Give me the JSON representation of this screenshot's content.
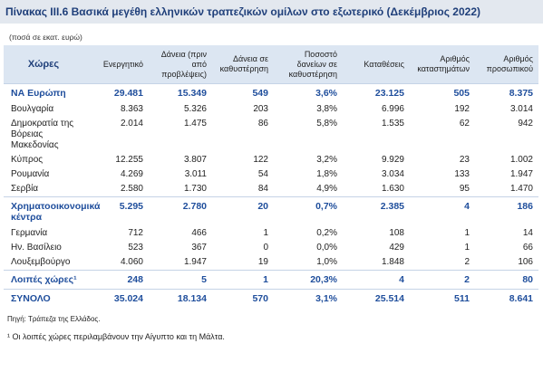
{
  "header": {
    "title": "Πίνακας ΙΙΙ.6 Βασικά μεγέθη ελληνικών τραπεζικών ομίλων στο εξωτερικό (Δεκέμβριος 2022)",
    "unit_note": "(ποσά σε εκατ. ευρώ)"
  },
  "table": {
    "columns": [
      "Χώρες",
      "Ενεργητικό",
      "Δάνεια (πριν από προβλέψεις)",
      "Δάνεια σε καθυστέρηση",
      "Ποσοστό δανείων σε καθυστέρηση",
      "Καταθέσεις",
      "Αριθμός καταστημάτων",
      "Αριθμός προσωπικού"
    ],
    "rows": [
      {
        "emphasis": true,
        "cells": [
          "ΝΑ Ευρώπη",
          "29.481",
          "15.349",
          "549",
          "3,6%",
          "23.125",
          "505",
          "8.375"
        ]
      },
      {
        "emphasis": false,
        "cells": [
          "Βουλγαρία",
          "8.363",
          "5.326",
          "203",
          "3,8%",
          "6.996",
          "192",
          "3.014"
        ]
      },
      {
        "emphasis": false,
        "cells": [
          "Δημοκρατία της Βόρειας Μακεδονίας",
          "2.014",
          "1.475",
          "86",
          "5,8%",
          "1.535",
          "62",
          "942"
        ]
      },
      {
        "emphasis": false,
        "cells": [
          "Κύπρος",
          "12.255",
          "3.807",
          "122",
          "3,2%",
          "9.929",
          "23",
          "1.002"
        ]
      },
      {
        "emphasis": false,
        "cells": [
          "Ρουμανία",
          "4.269",
          "3.011",
          "54",
          "1,8%",
          "3.034",
          "133",
          "1.947"
        ]
      },
      {
        "emphasis": false,
        "cells": [
          "Σερβία",
          "2.580",
          "1.730",
          "84",
          "4,9%",
          "1.630",
          "95",
          "1.470"
        ]
      },
      {
        "emphasis": true,
        "cells": [
          "Χρηματοοικονομικά κέντρα",
          "5.295",
          "2.780",
          "20",
          "0,7%",
          "2.385",
          "4",
          "186"
        ]
      },
      {
        "emphasis": false,
        "cells": [
          "Γερμανία",
          "712",
          "466",
          "1",
          "0,2%",
          "108",
          "1",
          "14"
        ]
      },
      {
        "emphasis": false,
        "cells": [
          "Ην. Βασίλειο",
          "523",
          "367",
          "0",
          "0,0%",
          "429",
          "1",
          "66"
        ]
      },
      {
        "emphasis": false,
        "cells": [
          "Λουξεμβούργο",
          "4.060",
          "1.947",
          "19",
          "1,0%",
          "1.848",
          "2",
          "106"
        ]
      },
      {
        "emphasis": true,
        "cells": [
          "Λοιπές χώρες¹",
          "248",
          "5",
          "1",
          "20,3%",
          "4",
          "2",
          "80"
        ]
      },
      {
        "emphasis": true,
        "cells": [
          "ΣΥΝΟΛΟ",
          "35.024",
          "18.134",
          "570",
          "3,1%",
          "25.514",
          "511",
          "8.641"
        ]
      }
    ]
  },
  "footer": {
    "source": "Πηγή: Τράπεζα της Ελλάδος.",
    "note": "¹ Οι λοιπές χώρες περιλαμβάνουν την Αίγυπτο και τη Μάλτα."
  }
}
